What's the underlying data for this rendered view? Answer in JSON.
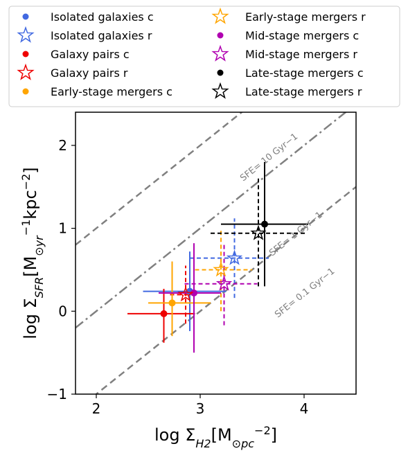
{
  "chart_data": {
    "type": "scatter",
    "xlabel": "log Σ_H2[M_⊙pc^−2]",
    "ylabel": "log Σ_SFR[M_⊙yr^−1kpc^−2]",
    "xlim": [
      1.8,
      4.5
    ],
    "ylim": [
      -1.0,
      2.4
    ],
    "xticks": [
      2,
      3,
      4
    ],
    "yticks": [
      -1,
      0,
      1,
      2
    ],
    "xtick_labels": [
      "2",
      "3",
      "4"
    ],
    "ytick_labels": [
      "−1",
      "0",
      "1",
      "2"
    ],
    "grid": false,
    "legend_position": "top",
    "reference_lines": [
      {
        "label": "SFE= 10 Gyr−1",
        "offset": -1,
        "style": "dashed",
        "color": "#808080"
      },
      {
        "label": "SFE= 1 Gyr−1",
        "offset": -2,
        "style": "dashdot",
        "color": "#808080"
      },
      {
        "label": "SFE= 0.1 Gyr−1",
        "offset": -3,
        "style": "dashed",
        "color": "#808080"
      }
    ],
    "series": [
      {
        "name": "Isolated galaxies c",
        "color": "#4169e1",
        "marker": "circle",
        "x": 2.9,
        "y": 0.24,
        "xerr": [
          0.45,
          0.35
        ],
        "yerr": [
          0.48,
          0.48
        ]
      },
      {
        "name": "Isolated galaxies r",
        "color": "#4169e1",
        "marker": "star",
        "linestyle": "dashed",
        "x": 3.33,
        "y": 0.64,
        "xerr": [
          0.43,
          0.33
        ],
        "yerr": [
          0.48,
          0.48
        ]
      },
      {
        "name": "Galaxy pairs c",
        "color": "#ee0000",
        "marker": "circle",
        "x": 2.65,
        "y": -0.03,
        "xerr": [
          0.35,
          0.3
        ],
        "yerr": [
          0.35,
          0.3
        ]
      },
      {
        "name": "Galaxy pairs r",
        "color": "#ee0000",
        "marker": "star",
        "linestyle": "dashed",
        "x": 2.86,
        "y": 0.2,
        "xerr": [
          0.15,
          0.1
        ],
        "yerr": [
          0.35,
          0.35
        ]
      },
      {
        "name": "Early-stage mergers c",
        "color": "#ffa500",
        "marker": "circle",
        "x": 2.73,
        "y": 0.1,
        "xerr": [
          0.23,
          0.37
        ],
        "yerr": [
          0.4,
          0.5
        ]
      },
      {
        "name": "Early-stage mergers r",
        "color": "#ffa500",
        "marker": "star",
        "linestyle": "dashed",
        "x": 3.2,
        "y": 0.5,
        "xerr": [
          0.25,
          0.3
        ],
        "yerr": [
          0.5,
          0.5
        ]
      },
      {
        "name": "Mid-stage mergers c",
        "color": "#b000b0",
        "marker": "circle",
        "x": 2.94,
        "y": 0.22,
        "xerr": [
          0.34,
          0.26
        ],
        "yerr": [
          0.72,
          0.6
        ]
      },
      {
        "name": "Mid-stage mergers r",
        "color": "#b000b0",
        "marker": "star",
        "linestyle": "dashed",
        "x": 3.23,
        "y": 0.33,
        "xerr": [
          0.38,
          0.32
        ],
        "yerr": [
          0.5,
          0.5
        ]
      },
      {
        "name": "Late-stage mergers c",
        "color": "#000000",
        "marker": "circle",
        "x": 3.62,
        "y": 1.05,
        "xerr": [
          0.42,
          0.42
        ],
        "yerr": [
          0.75,
          0.75
        ]
      },
      {
        "name": "Late-stage mergers r",
        "color": "#000000",
        "marker": "star",
        "linestyle": "dashed",
        "x": 3.56,
        "y": 0.94,
        "xerr": [
          0.46,
          0.46
        ],
        "yerr": [
          0.64,
          0.66
        ]
      }
    ]
  }
}
